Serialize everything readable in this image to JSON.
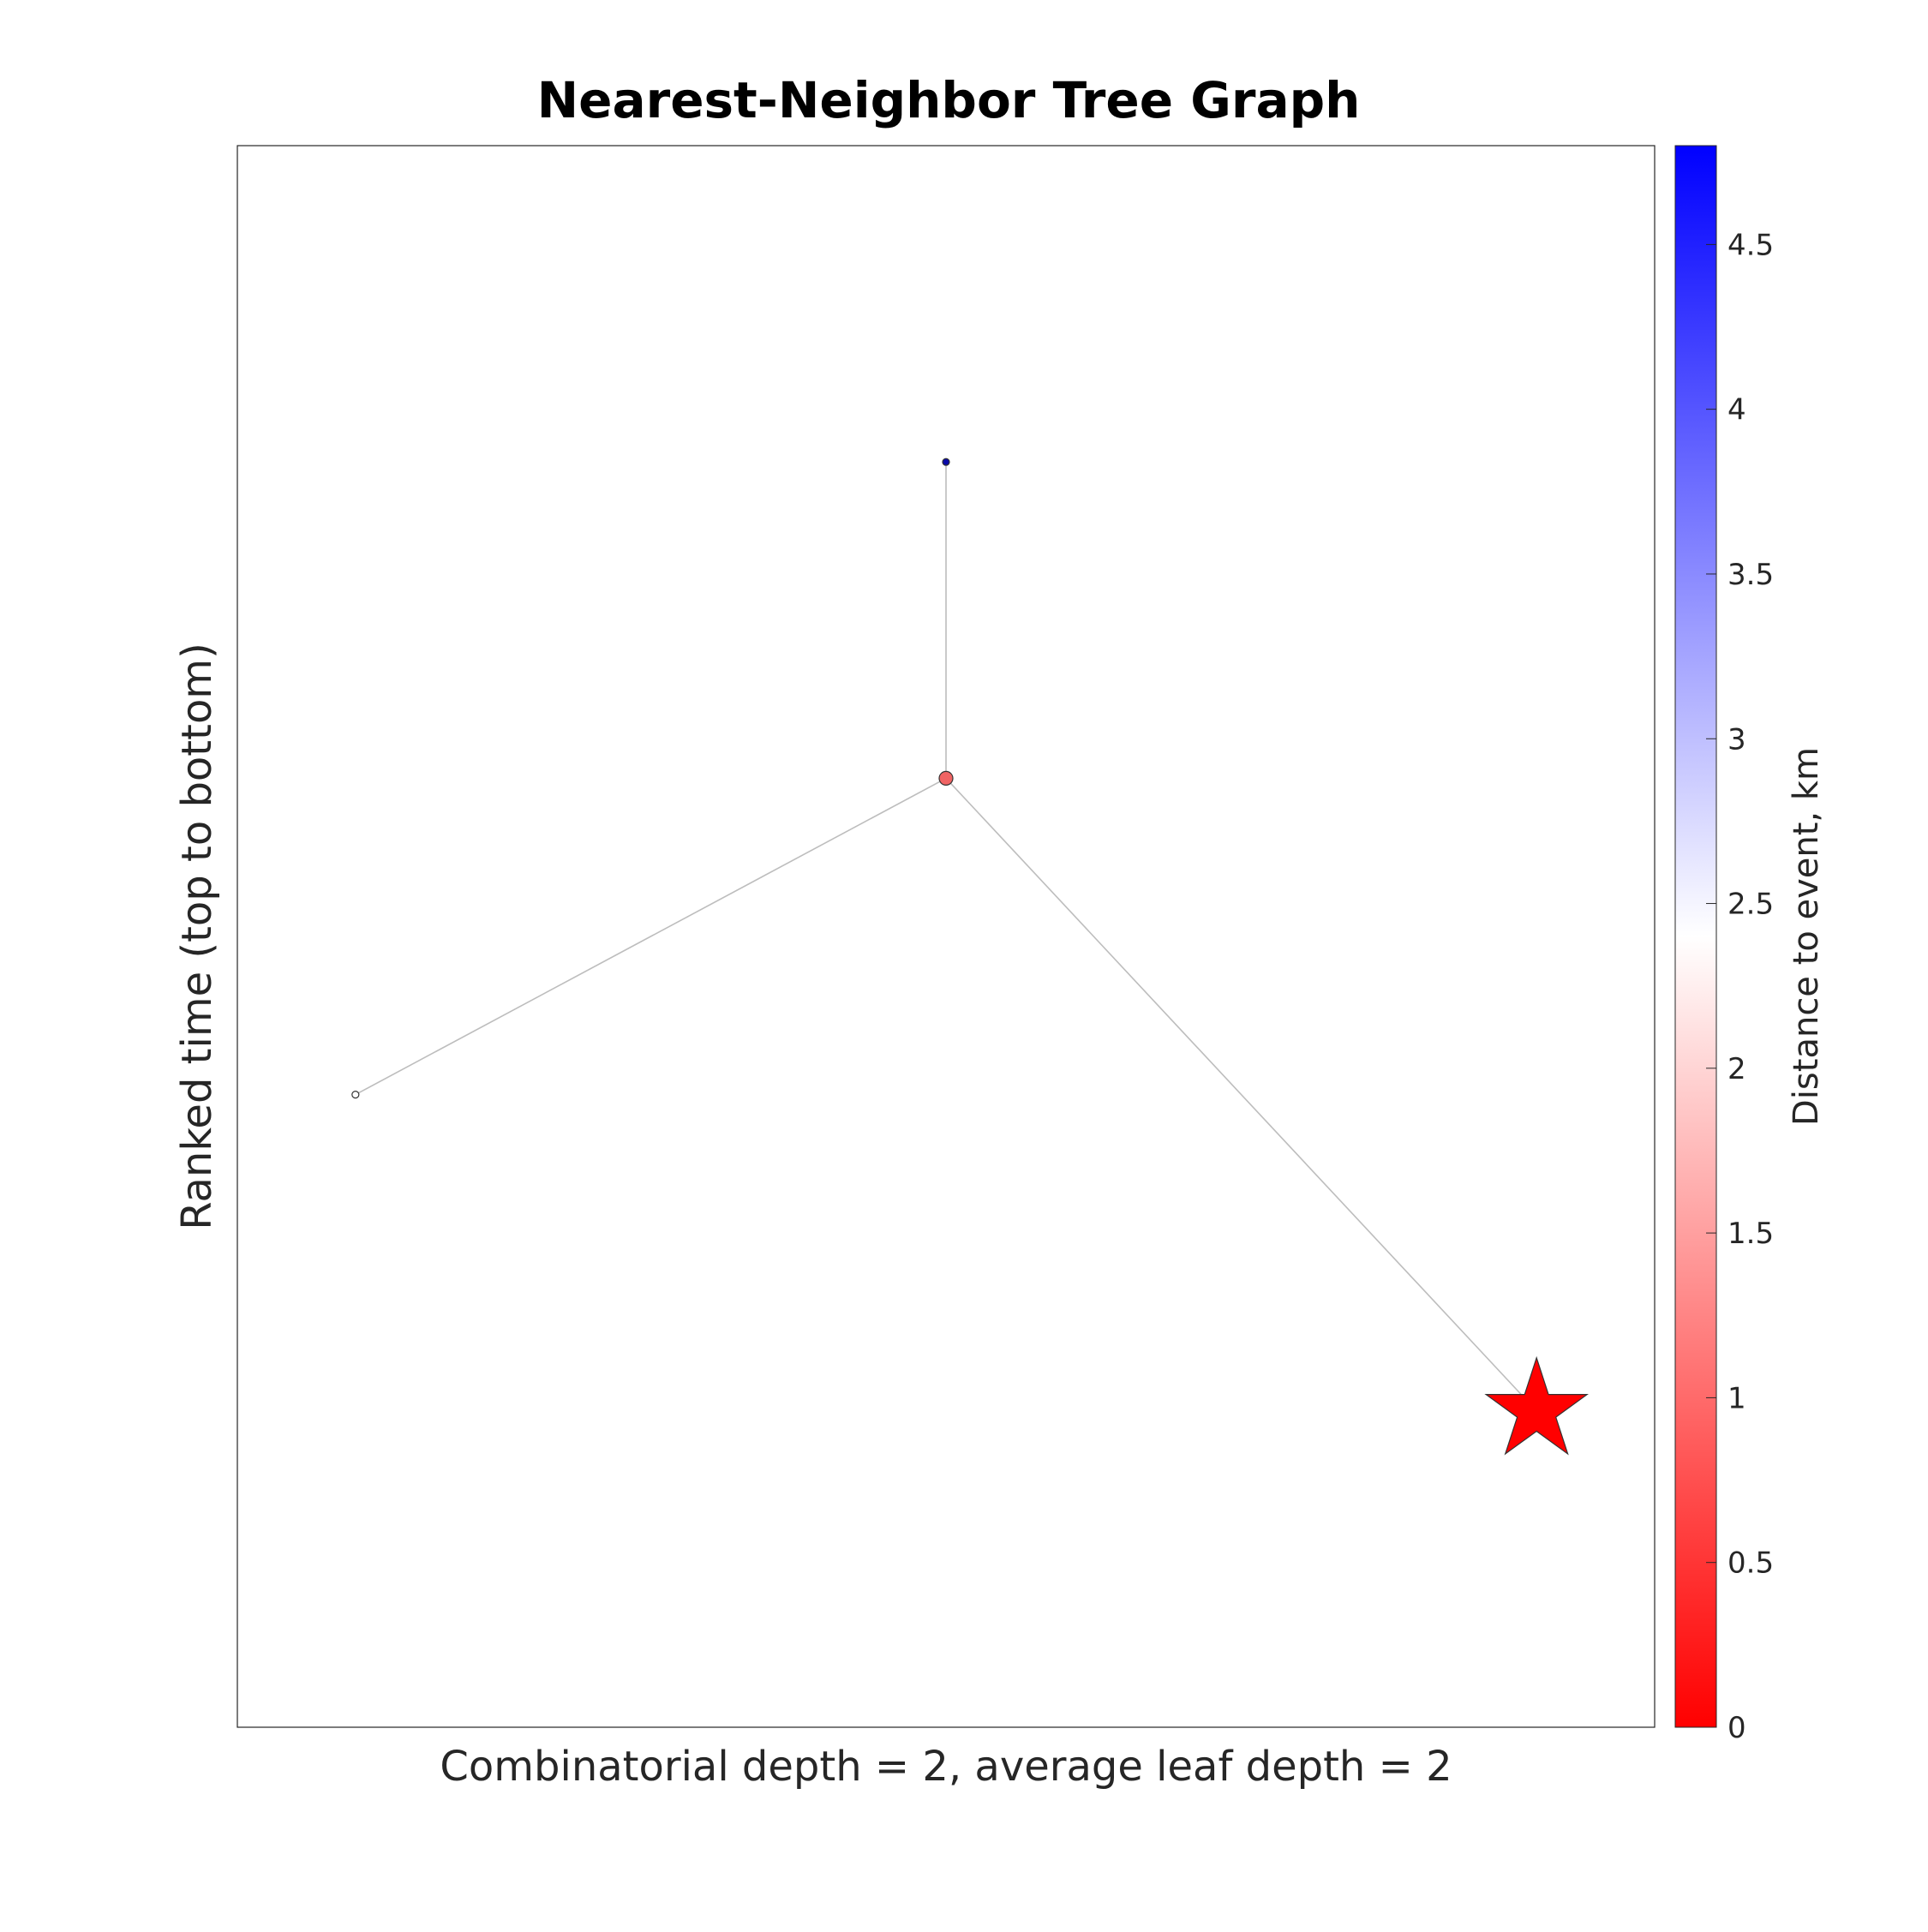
{
  "chart_data": {
    "type": "scatter",
    "title": "Nearest-Neighbor Tree Graph",
    "xlabel": "Combinatorial depth = 2, average leaf depth = 2",
    "ylabel": "Ranked time (top to bottom)",
    "x_ticks_shown": false,
    "y_ticks_shown": false,
    "grid": false,
    "xlim": [
      0.8,
      3.2
    ],
    "ylim": [
      5,
      0
    ],
    "nodes": [
      {
        "id": "n1",
        "x": 2.0,
        "y": 1.0,
        "distance_km": 4.85,
        "marker": "circle",
        "size": "tiny",
        "color": "#0a0aa8"
      },
      {
        "id": "n2",
        "x": 2.0,
        "y": 2.0,
        "distance_km": 1.0,
        "marker": "circle",
        "size": "small",
        "color": "#f06464"
      },
      {
        "id": "n3",
        "x": 1.0,
        "y": 3.0,
        "distance_km": 2.45,
        "marker": "circle",
        "size": "tiny",
        "color": "#ffffff"
      },
      {
        "id": "n4",
        "x": 3.0,
        "y": 4.0,
        "distance_km": 0.0,
        "marker": "star",
        "size": "large",
        "color": "#ff0000"
      }
    ],
    "edges": [
      {
        "from": "n1",
        "to": "n2"
      },
      {
        "from": "n2",
        "to": "n3"
      },
      {
        "from": "n2",
        "to": "n4"
      }
    ],
    "colorbar": {
      "label": "Distance to event, km",
      "min": 0,
      "max": 4.8,
      "colors": [
        "#ff0000",
        "#ffffff",
        "#0000ff"
      ],
      "ticks": [
        {
          "value": 0,
          "label": "0"
        },
        {
          "value": 0.5,
          "label": "0.5"
        },
        {
          "value": 1,
          "label": "1"
        },
        {
          "value": 1.5,
          "label": "1.5"
        },
        {
          "value": 2,
          "label": "2"
        },
        {
          "value": 2.5,
          "label": "2.5"
        },
        {
          "value": 3,
          "label": "3"
        },
        {
          "value": 3.5,
          "label": "3.5"
        },
        {
          "value": 4,
          "label": "4"
        },
        {
          "value": 4.5,
          "label": "4.5"
        }
      ]
    },
    "edge_color": "#bdbdbd",
    "node_edge_color": "#333333"
  }
}
